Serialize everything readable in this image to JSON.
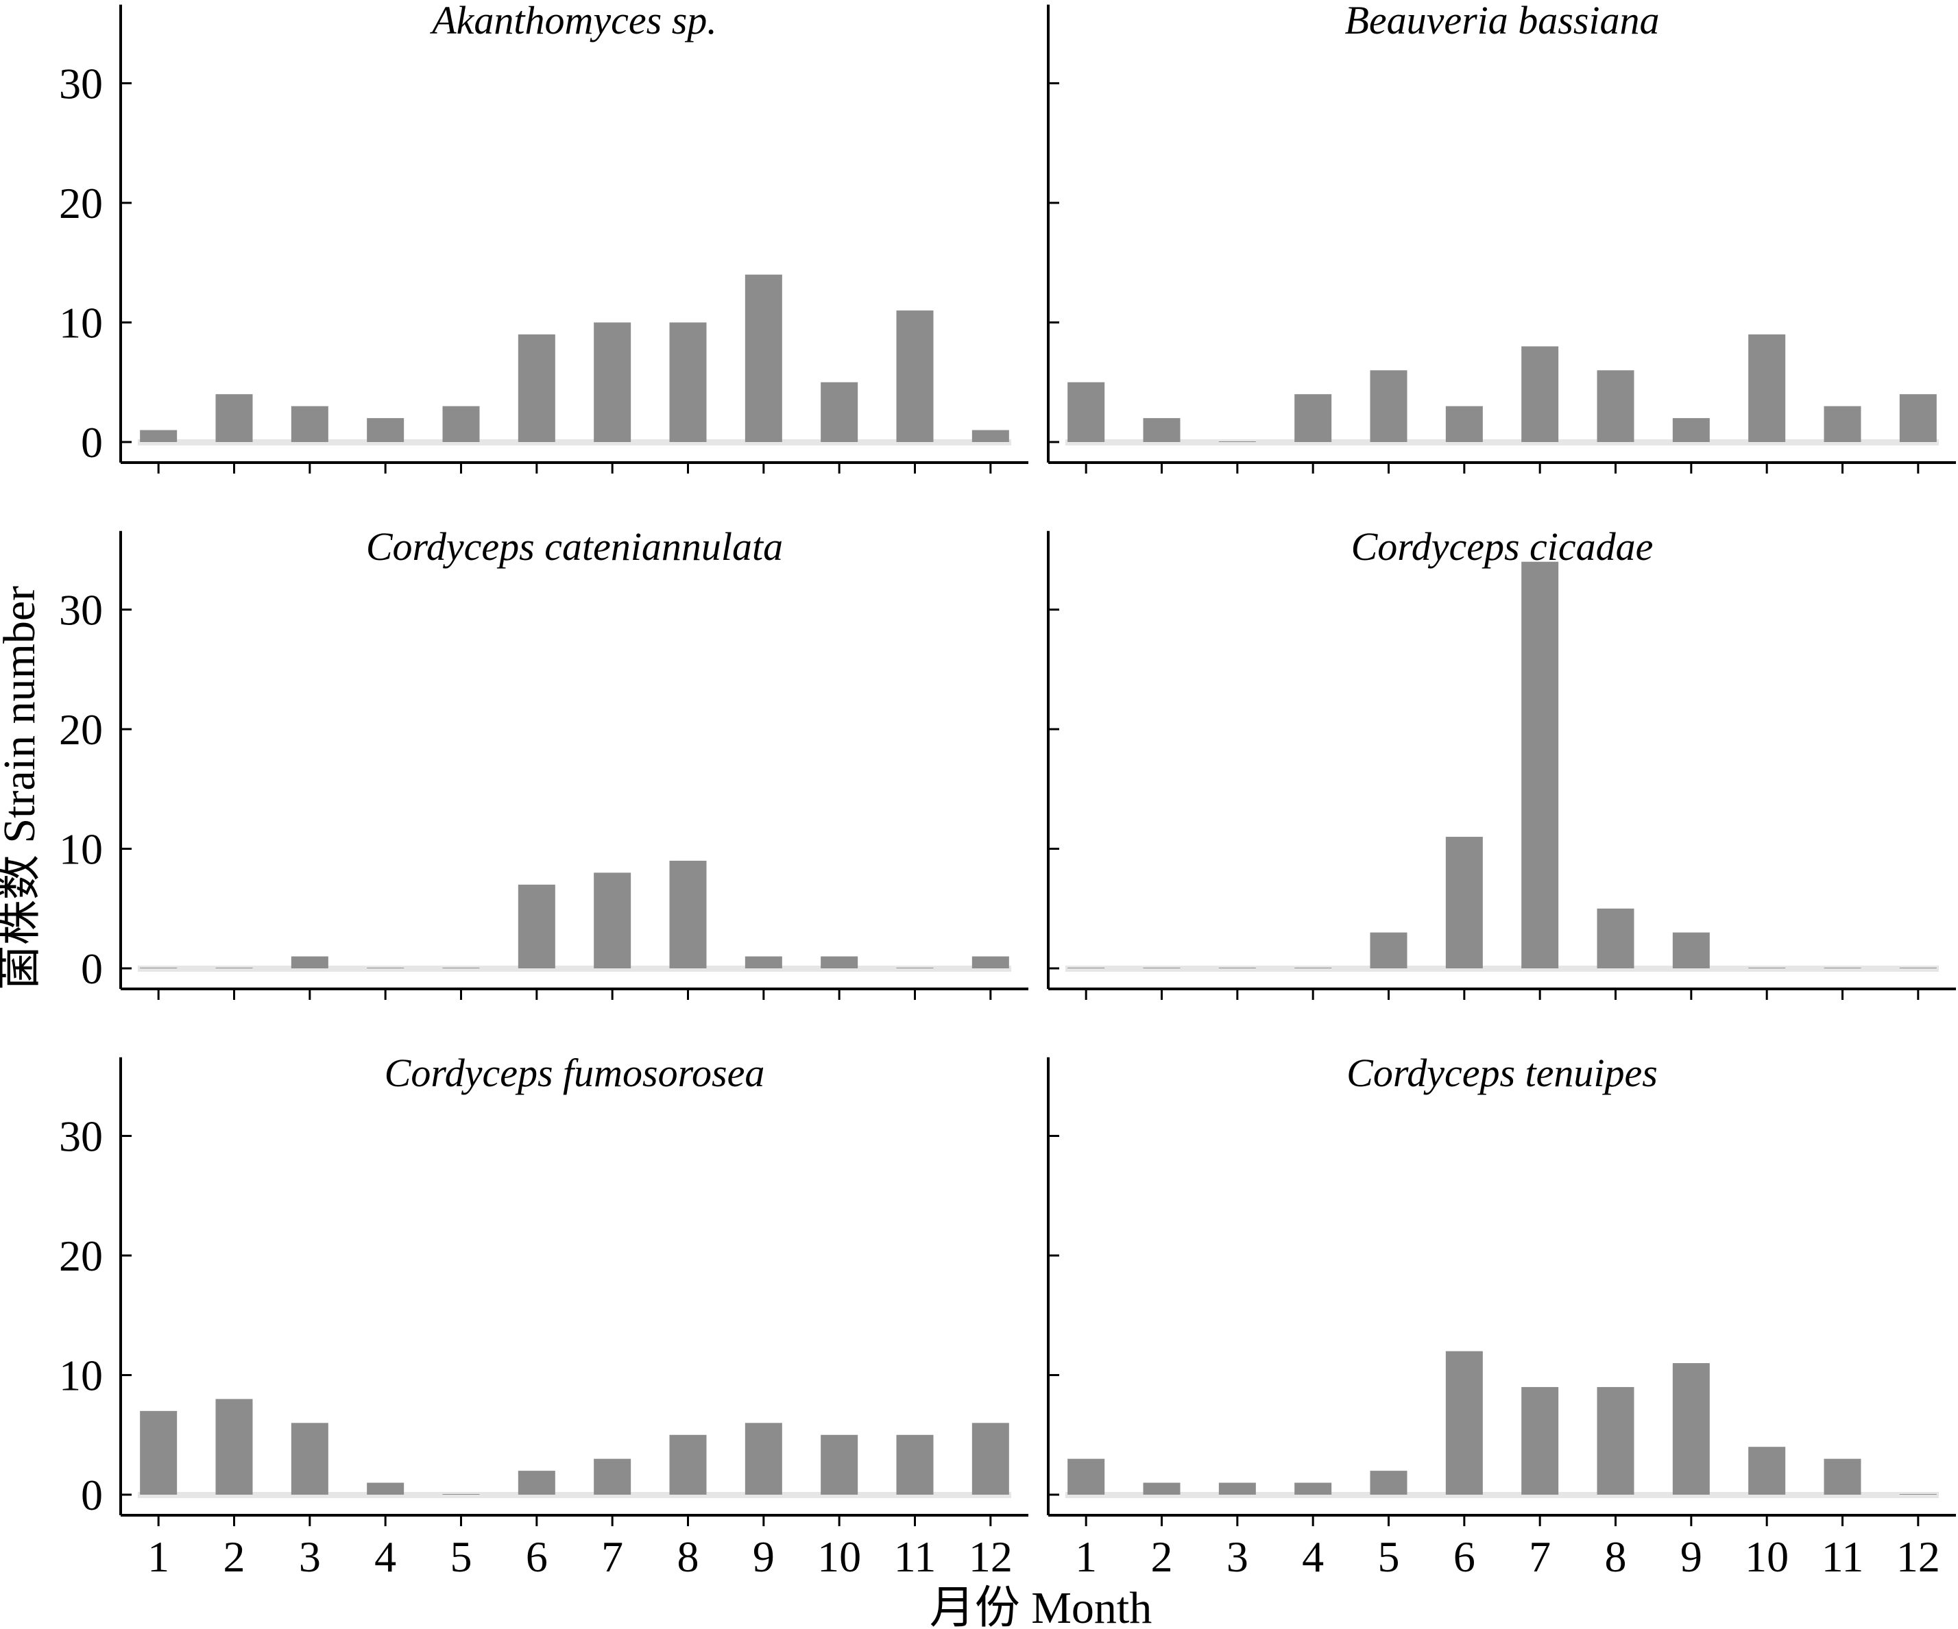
{
  "figure": {
    "ylabel": "菌株数 Strain number",
    "xlabel": "月份 Month",
    "bar_color": "#8c8c8c",
    "zero_band_color": "#e6e6e6",
    "axis_color": "#000000"
  },
  "chart_data": [
    {
      "type": "bar",
      "title": "Akanthomyces sp.",
      "categories": [
        "1",
        "2",
        "3",
        "4",
        "5",
        "6",
        "7",
        "8",
        "9",
        "10",
        "11",
        "12"
      ],
      "values": [
        1,
        4,
        3,
        2,
        3,
        9,
        10,
        10,
        14,
        5,
        11,
        1
      ],
      "ylim": [
        0,
        36
      ],
      "yticks": [
        0,
        10,
        20,
        30
      ],
      "grid": false
    },
    {
      "type": "bar",
      "title": "Beauveria bassiana",
      "categories": [
        "1",
        "2",
        "3",
        "4",
        "5",
        "6",
        "7",
        "8",
        "9",
        "10",
        "11",
        "12"
      ],
      "values": [
        5,
        2,
        0,
        4,
        6,
        3,
        8,
        6,
        2,
        9,
        3,
        4
      ],
      "ylim": [
        0,
        36
      ],
      "yticks": [
        0,
        10,
        20,
        30
      ],
      "grid": false
    },
    {
      "type": "bar",
      "title": "Cordyceps cateniannulata",
      "categories": [
        "1",
        "2",
        "3",
        "4",
        "5",
        "6",
        "7",
        "8",
        "9",
        "10",
        "11",
        "12"
      ],
      "values": [
        0,
        0,
        1,
        0,
        0,
        7,
        8,
        9,
        1,
        1,
        0,
        1
      ],
      "ylim": [
        0,
        36
      ],
      "yticks": [
        0,
        10,
        20,
        30
      ],
      "grid": false
    },
    {
      "type": "bar",
      "title": "Cordyceps cicadae",
      "categories": [
        "1",
        "2",
        "3",
        "4",
        "5",
        "6",
        "7",
        "8",
        "9",
        "10",
        "11",
        "12"
      ],
      "values": [
        0,
        0,
        0,
        0,
        3,
        11,
        34,
        5,
        3,
        0,
        0,
        0
      ],
      "ylim": [
        0,
        36
      ],
      "yticks": [
        0,
        10,
        20,
        30
      ],
      "grid": false
    },
    {
      "type": "bar",
      "title": "Cordyceps fumosorosea",
      "categories": [
        "1",
        "2",
        "3",
        "4",
        "5",
        "6",
        "7",
        "8",
        "9",
        "10",
        "11",
        "12"
      ],
      "values": [
        7,
        8,
        6,
        1,
        0,
        2,
        3,
        5,
        6,
        5,
        5,
        6
      ],
      "ylim": [
        0,
        36
      ],
      "yticks": [
        0,
        10,
        20,
        30
      ],
      "grid": false
    },
    {
      "type": "bar",
      "title": "Cordyceps tenuipes",
      "categories": [
        "1",
        "2",
        "3",
        "4",
        "5",
        "6",
        "7",
        "8",
        "9",
        "10",
        "11",
        "12"
      ],
      "values": [
        3,
        1,
        1,
        1,
        2,
        12,
        9,
        9,
        11,
        4,
        3,
        0
      ],
      "ylim": [
        0,
        36
      ],
      "yticks": [
        0,
        10,
        20,
        30
      ],
      "grid": false
    }
  ]
}
